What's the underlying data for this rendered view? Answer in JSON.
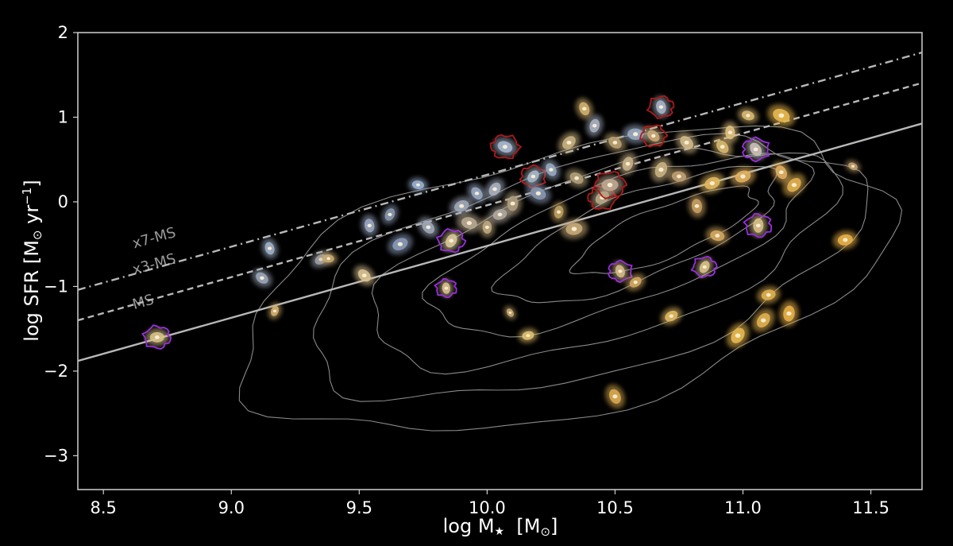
{
  "chart_data": {
    "type": "scatter",
    "xlabel_main": "log M",
    "xlabel_sub": "★",
    "xlabel_unit": "[M",
    "xlabel_unit_sub": "⊙",
    "xlabel_close": "]",
    "ylabel_main": "log SFR  [M",
    "ylabel_sub": "⊙",
    "ylabel_unit": " yr",
    "ylabel_sup": "−1",
    "ylabel_close": "]",
    "xlim": [
      8.4,
      11.7
    ],
    "ylim": [
      -3.4,
      2.0
    ],
    "xticks": [
      8.5,
      9.0,
      9.5,
      10.0,
      10.5,
      11.0,
      11.5
    ],
    "xtick_labels": [
      "8.5",
      "9.0",
      "9.5",
      "10.0",
      "10.5",
      "11.0",
      "11.5"
    ],
    "yticks": [
      -3,
      -2,
      -1,
      0,
      1,
      2
    ],
    "ytick_labels": [
      "−3",
      "−2",
      "−1",
      "0",
      "1",
      "2"
    ],
    "relations": [
      {
        "label": "MS",
        "style": "solid",
        "slope": 0.85,
        "point": [
          10.0,
          -0.52
        ]
      },
      {
        "label": "x3-MS",
        "style": "dashed",
        "slope": 0.85,
        "point": [
          10.0,
          -0.04
        ]
      },
      {
        "label": "x7-MS",
        "style": "dashdot",
        "slope": 0.85,
        "point": [
          10.0,
          0.32
        ]
      }
    ],
    "galaxies": [
      {
        "x": 8.71,
        "y": -1.6,
        "size": 1.0,
        "color": "#d8c28a",
        "outline": "purple"
      },
      {
        "x": 9.12,
        "y": -0.9,
        "size": 0.9,
        "color": "#9aa6b8",
        "outline": null
      },
      {
        "x": 9.15,
        "y": -0.55,
        "size": 0.8,
        "color": "#a0b0c8",
        "outline": null
      },
      {
        "x": 9.17,
        "y": -1.29,
        "size": 0.5,
        "color": "#d4b070",
        "outline": null
      },
      {
        "x": 9.35,
        "y": -0.68,
        "size": 0.8,
        "color": "#9a9fa8",
        "outline": null
      },
      {
        "x": 9.38,
        "y": -0.67,
        "size": 0.6,
        "color": "#c8a870",
        "outline": null
      },
      {
        "x": 9.52,
        "y": -0.87,
        "size": 1.0,
        "color": "#d8c090",
        "outline": null
      },
      {
        "x": 9.54,
        "y": -0.28,
        "size": 0.9,
        "color": "#9aa6c0",
        "outline": null
      },
      {
        "x": 9.62,
        "y": -0.15,
        "size": 0.8,
        "color": "#8a98b0",
        "outline": null
      },
      {
        "x": 9.66,
        "y": -0.5,
        "size": 1.2,
        "color": "#8a9ab8",
        "outline": null
      },
      {
        "x": 9.73,
        "y": 0.2,
        "size": 0.7,
        "color": "#9ab0d0",
        "outline": null
      },
      {
        "x": 9.77,
        "y": -0.3,
        "size": 1.0,
        "color": "#a0a8b8",
        "outline": null
      },
      {
        "x": 9.84,
        "y": -1.02,
        "size": 0.6,
        "color": "#d8c090",
        "outline": "purple"
      },
      {
        "x": 9.86,
        "y": -0.46,
        "size": 1.0,
        "color": "#d8c69a",
        "outline": "purple"
      },
      {
        "x": 9.9,
        "y": -0.05,
        "size": 1.1,
        "color": "#a0a8b8",
        "outline": null
      },
      {
        "x": 9.93,
        "y": -0.25,
        "size": 1.2,
        "color": "#b8a890",
        "outline": null
      },
      {
        "x": 9.96,
        "y": 0.1,
        "size": 0.9,
        "color": "#98a8c0",
        "outline": null
      },
      {
        "x": 10.0,
        "y": -0.3,
        "size": 0.8,
        "color": "#c0a880",
        "outline": null
      },
      {
        "x": 10.03,
        "y": 0.15,
        "size": 1.0,
        "color": "#a8b0c0",
        "outline": null
      },
      {
        "x": 10.05,
        "y": -0.15,
        "size": 1.0,
        "color": "#b0a8a0",
        "outline": null
      },
      {
        "x": 10.07,
        "y": 0.65,
        "size": 1.1,
        "color": "#a8b8d0",
        "outline": "red"
      },
      {
        "x": 10.09,
        "y": -1.31,
        "size": 0.3,
        "color": "#c8a870",
        "outline": null
      },
      {
        "x": 10.1,
        "y": -0.02,
        "size": 1.1,
        "color": "#b0a080",
        "outline": null
      },
      {
        "x": 10.18,
        "y": 0.3,
        "size": 0.9,
        "color": "#a8b8c8",
        "outline": "red"
      },
      {
        "x": 10.16,
        "y": -1.58,
        "size": 0.7,
        "color": "#e0c070",
        "outline": null
      },
      {
        "x": 10.2,
        "y": 0.1,
        "size": 1.2,
        "color": "#8a98b0",
        "outline": null
      },
      {
        "x": 10.25,
        "y": 0.38,
        "size": 0.9,
        "color": "#98a8c0",
        "outline": null
      },
      {
        "x": 10.28,
        "y": -0.12,
        "size": 0.8,
        "color": "#c0a060",
        "outline": null
      },
      {
        "x": 10.32,
        "y": 0.7,
        "size": 1.1,
        "color": "#c8b080",
        "outline": null
      },
      {
        "x": 10.34,
        "y": -0.32,
        "size": 1.3,
        "color": "#c8aa78",
        "outline": null
      },
      {
        "x": 10.35,
        "y": 0.28,
        "size": 1.0,
        "color": "#b0a078",
        "outline": null
      },
      {
        "x": 10.38,
        "y": 1.1,
        "size": 0.9,
        "color": "#d0b070",
        "outline": null
      },
      {
        "x": 10.42,
        "y": 0.9,
        "size": 0.9,
        "color": "#a8b0c0",
        "outline": null
      },
      {
        "x": 10.45,
        "y": 0.05,
        "size": 1.1,
        "color": "#b8a888",
        "outline": "red"
      },
      {
        "x": 10.48,
        "y": 0.2,
        "size": 1.3,
        "color": "#c0a890",
        "outline": "red"
      },
      {
        "x": 10.5,
        "y": 0.7,
        "size": 1.0,
        "color": "#b8a070",
        "outline": null
      },
      {
        "x": 10.52,
        "y": -0.82,
        "size": 0.8,
        "color": "#d4b888",
        "outline": "purple"
      },
      {
        "x": 10.55,
        "y": 0.45,
        "size": 1.0,
        "color": "#c8b088",
        "outline": null
      },
      {
        "x": 10.58,
        "y": -0.95,
        "size": 0.8,
        "color": "#d0a860",
        "outline": null
      },
      {
        "x": 10.58,
        "y": 0.8,
        "size": 1.2,
        "color": "#98a8c0",
        "outline": null
      },
      {
        "x": 10.65,
        "y": 0.78,
        "size": 0.9,
        "color": "#c8a878",
        "outline": "red"
      },
      {
        "x": 10.68,
        "y": 1.12,
        "size": 0.9,
        "color": "#a8b4c8",
        "outline": "red"
      },
      {
        "x": 10.68,
        "y": 0.38,
        "size": 1.2,
        "color": "#c8b080",
        "outline": null
      },
      {
        "x": 10.72,
        "y": -1.35,
        "size": 0.9,
        "color": "#e0b860",
        "outline": null
      },
      {
        "x": 10.75,
        "y": 0.3,
        "size": 1.0,
        "color": "#c0a070",
        "outline": null
      },
      {
        "x": 10.78,
        "y": 0.7,
        "size": 1.1,
        "color": "#d0b888",
        "outline": null
      },
      {
        "x": 10.82,
        "y": -0.05,
        "size": 1.0,
        "color": "#c8a060",
        "outline": null
      },
      {
        "x": 10.85,
        "y": -0.77,
        "size": 0.8,
        "color": "#d8c088",
        "outline": "purple"
      },
      {
        "x": 10.88,
        "y": 0.22,
        "size": 1.2,
        "color": "#e0b860",
        "outline": null
      },
      {
        "x": 10.9,
        "y": -0.4,
        "size": 1.0,
        "color": "#d4a860",
        "outline": null
      },
      {
        "x": 10.92,
        "y": 0.65,
        "size": 1.0,
        "color": "#d8b870",
        "outline": null
      },
      {
        "x": 10.95,
        "y": 0.82,
        "size": 0.9,
        "color": "#e0c080",
        "outline": null
      },
      {
        "x": 10.98,
        "y": -1.58,
        "size": 1.3,
        "color": "#e8b850",
        "outline": null
      },
      {
        "x": 11.0,
        "y": 0.3,
        "size": 1.2,
        "color": "#e0b060",
        "outline": null
      },
      {
        "x": 11.02,
        "y": 1.02,
        "size": 0.8,
        "color": "#d8b870",
        "outline": null
      },
      {
        "x": 11.05,
        "y": 0.62,
        "size": 1.0,
        "color": "#c8c0b8",
        "outline": "purple"
      },
      {
        "x": 11.06,
        "y": -0.28,
        "size": 1.0,
        "color": "#d8c088",
        "outline": "purple"
      },
      {
        "x": 11.08,
        "y": -1.4,
        "size": 1.2,
        "color": "#e0b050",
        "outline": null
      },
      {
        "x": 11.1,
        "y": -1.1,
        "size": 1.0,
        "color": "#e0b050",
        "outline": null
      },
      {
        "x": 11.15,
        "y": 1.02,
        "size": 1.4,
        "color": "#e8b850",
        "outline": null
      },
      {
        "x": 11.15,
        "y": 0.35,
        "size": 1.0,
        "color": "#e0b060",
        "outline": null
      },
      {
        "x": 11.18,
        "y": -1.32,
        "size": 1.2,
        "color": "#e8b048",
        "outline": null
      },
      {
        "x": 11.2,
        "y": 0.2,
        "size": 1.2,
        "color": "#e0b050",
        "outline": null
      },
      {
        "x": 11.4,
        "y": -0.45,
        "size": 1.1,
        "color": "#e8b048",
        "outline": null
      },
      {
        "x": 11.43,
        "y": 0.42,
        "size": 0.4,
        "color": "#c0a070",
        "outline": null
      },
      {
        "x": 10.5,
        "y": -2.3,
        "size": 1.1,
        "color": "#d8a850",
        "outline": null
      }
    ]
  }
}
